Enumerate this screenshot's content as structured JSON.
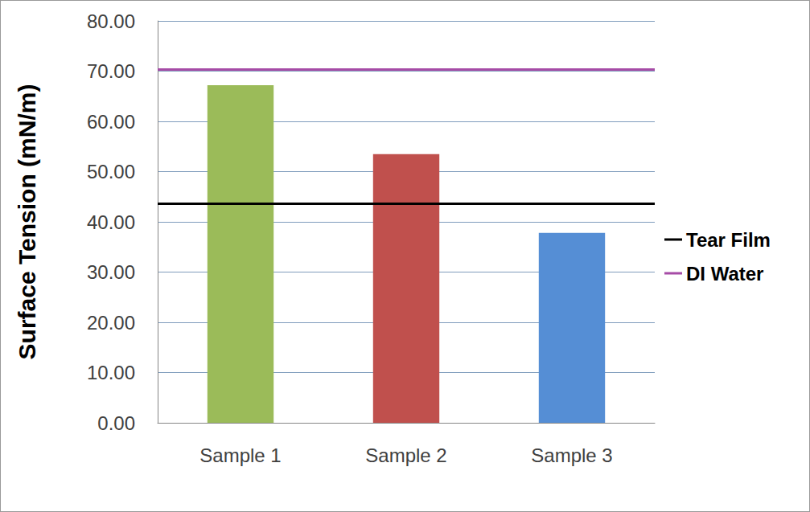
{
  "chart_data": {
    "type": "bar",
    "ylabel": "Surface Tension (mN/m)",
    "categories": [
      "Sample 1",
      "Sample 2",
      "Sample 3"
    ],
    "values": [
      67.2,
      53.5,
      37.8
    ],
    "colors": [
      "#9bbb59",
      "#c0504d",
      "#558ed5"
    ],
    "reference_lines": [
      {
        "name": "Tear Film",
        "value": 43.6,
        "color": "#000000"
      },
      {
        "name": "DI Water",
        "value": 70.4,
        "color": "#a64ca6"
      }
    ],
    "ylim": [
      0,
      80
    ],
    "yticks": [
      {
        "value": 0,
        "label": "0.00"
      },
      {
        "value": 10,
        "label": "10.00"
      },
      {
        "value": 20,
        "label": "20.00"
      },
      {
        "value": 30,
        "label": "30.00"
      },
      {
        "value": 40,
        "label": "40.00"
      },
      {
        "value": 50,
        "label": "50.00"
      },
      {
        "value": 60,
        "label": "60.00"
      },
      {
        "value": 70,
        "label": "70.00"
      },
      {
        "value": 80,
        "label": "80.00"
      }
    ],
    "grid": true,
    "legend": "right"
  }
}
